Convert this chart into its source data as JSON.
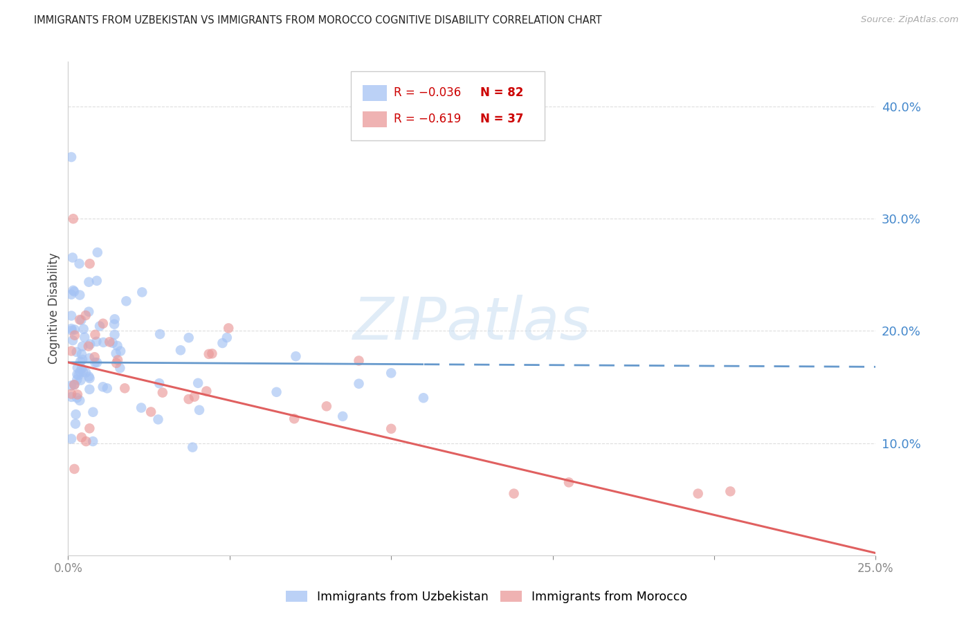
{
  "title": "IMMIGRANTS FROM UZBEKISTAN VS IMMIGRANTS FROM MOROCCO COGNITIVE DISABILITY CORRELATION CHART",
  "source": "Source: ZipAtlas.com",
  "ylabel": "Cognitive Disability",
  "xlim": [
    0.0,
    0.25
  ],
  "ylim": [
    0.0,
    0.44
  ],
  "right_yticks": [
    0.1,
    0.2,
    0.3,
    0.4
  ],
  "right_yticklabels": [
    "10.0%",
    "20.0%",
    "30.0%",
    "40.0%"
  ],
  "xtick_positions": [
    0.0,
    0.05,
    0.1,
    0.15,
    0.2,
    0.25
  ],
  "xtick_labels": [
    "0.0%",
    "",
    "",
    "",
    "",
    "25.0%"
  ],
  "series1_color": "#a4c2f4",
  "series2_color": "#ea9999",
  "series1_label": "Immigrants from Uzbekistan",
  "series2_label": "Immigrants from Morocco",
  "legend_R1": "R = −0.036",
  "legend_N1": "N = 82",
  "legend_R2": "R = −0.619",
  "legend_N2": "N = 37",
  "trend1_color": "#6699cc",
  "trend2_color": "#e06060",
  "trend1_slope": -0.016,
  "trend1_intercept": 0.172,
  "trend2_slope": -0.68,
  "trend2_intercept": 0.172,
  "watermark": "ZIPatlas",
  "tick_color": "#888888",
  "grid_color": "#dddddd",
  "right_label_color": "#4488cc"
}
